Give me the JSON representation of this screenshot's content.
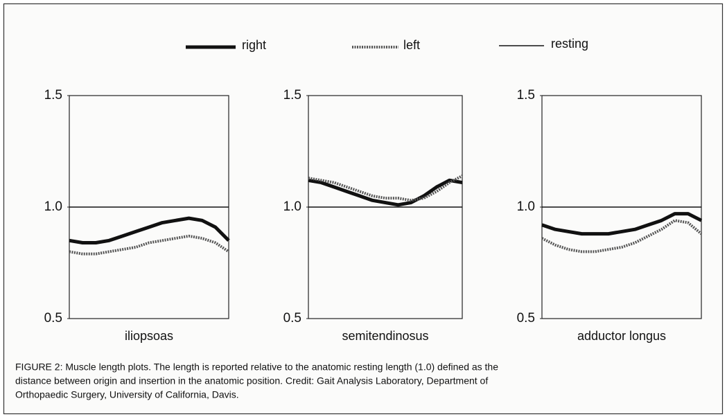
{
  "legend": true,
  "caption": [
    "FIGURE 2:  Muscle length plots.  The length is reported relative to the anatomic resting length (1.0) defined as the",
    "distance between origin and insertion in the anatomic position.  Credit:  Gait Analysis Laboratory, Department of",
    "Orthopaedic Surgery, University of California, Davis."
  ],
  "chart_data": [
    {
      "type": "line",
      "title": "iliopsoas",
      "categories": [
        null,
        null,
        null,
        null,
        null,
        null,
        null,
        null,
        null,
        null,
        null,
        null,
        null
      ],
      "ylim": [
        0.5,
        1.5
      ],
      "yticks": [
        0.5,
        {
          "value": 1,
          "label": "1.0"
        },
        1.5
      ],
      "series": [
        {
          "name": "right",
          "color": "#111111",
          "linewidth": 5,
          "linestyle": "solid",
          "values": [
            0.85,
            0.84,
            0.84,
            0.85,
            0.87,
            0.89,
            0.91,
            0.93,
            0.94,
            0.95,
            0.94,
            0.91,
            0.85
          ]
        },
        {
          "name": "left",
          "color": "#555555",
          "linewidth": 4,
          "linestyle": "dotted",
          "values": [
            0.8,
            0.79,
            0.79,
            0.8,
            0.81,
            0.82,
            0.84,
            0.85,
            0.86,
            0.87,
            0.86,
            0.84,
            0.8
          ]
        },
        {
          "name": "resting",
          "color": "#111111",
          "linewidth": 1.5,
          "linestyle": "solid",
          "values": [
            1,
            1,
            1,
            1,
            1,
            1,
            1,
            1,
            1,
            1,
            1,
            1,
            1
          ]
        }
      ]
    },
    {
      "type": "line",
      "title": "semitendinosus",
      "categories": [
        null,
        null,
        null,
        null,
        null,
        null,
        null,
        null,
        null,
        null,
        null,
        null,
        null
      ],
      "ylim": [
        0.5,
        1.5
      ],
      "yticks": [
        0.5,
        {
          "value": 1,
          "label": "1.0"
        },
        1.5
      ],
      "series": [
        {
          "name": "right",
          "color": "#111111",
          "linewidth": 5,
          "linestyle": "solid",
          "values": [
            1.12,
            1.11,
            1.09,
            1.07,
            1.05,
            1.03,
            1.02,
            1.01,
            1.02,
            1.05,
            1.09,
            1.12,
            1.11
          ]
        },
        {
          "name": "left",
          "color": "#555555",
          "linewidth": 4,
          "linestyle": "dotted",
          "values": [
            1.13,
            1.12,
            1.11,
            1.09,
            1.07,
            1.05,
            1.04,
            1.04,
            1.03,
            1.04,
            1.07,
            1.11,
            1.14
          ]
        },
        {
          "name": "resting",
          "color": "#111111",
          "linewidth": 1.5,
          "linestyle": "solid",
          "values": [
            1,
            1,
            1,
            1,
            1,
            1,
            1,
            1,
            1,
            1,
            1,
            1,
            1
          ]
        }
      ]
    },
    {
      "type": "line",
      "title": "adductor longus",
      "categories": [
        null,
        null,
        null,
        null,
        null,
        null,
        null,
        null,
        null,
        null,
        null,
        null,
        null
      ],
      "ylim": [
        0.5,
        1.5
      ],
      "yticks": [
        0.5,
        {
          "value": 1,
          "label": "1.0"
        },
        1.5
      ],
      "series": [
        {
          "name": "right",
          "color": "#111111",
          "linewidth": 5,
          "linestyle": "solid",
          "values": [
            0.92,
            0.9,
            0.89,
            0.88,
            0.88,
            0.88,
            0.89,
            0.9,
            0.92,
            0.94,
            0.97,
            0.97,
            0.94
          ]
        },
        {
          "name": "left",
          "color": "#555555",
          "linewidth": 4,
          "linestyle": "dotted",
          "values": [
            0.86,
            0.83,
            0.81,
            0.8,
            0.8,
            0.81,
            0.82,
            0.84,
            0.87,
            0.9,
            0.94,
            0.93,
            0.88
          ]
        },
        {
          "name": "resting",
          "color": "#111111",
          "linewidth": 1.5,
          "linestyle": "solid",
          "values": [
            1,
            1,
            1,
            1,
            1,
            1,
            1,
            1,
            1,
            1,
            1,
            1,
            1
          ]
        }
      ]
    }
  ]
}
